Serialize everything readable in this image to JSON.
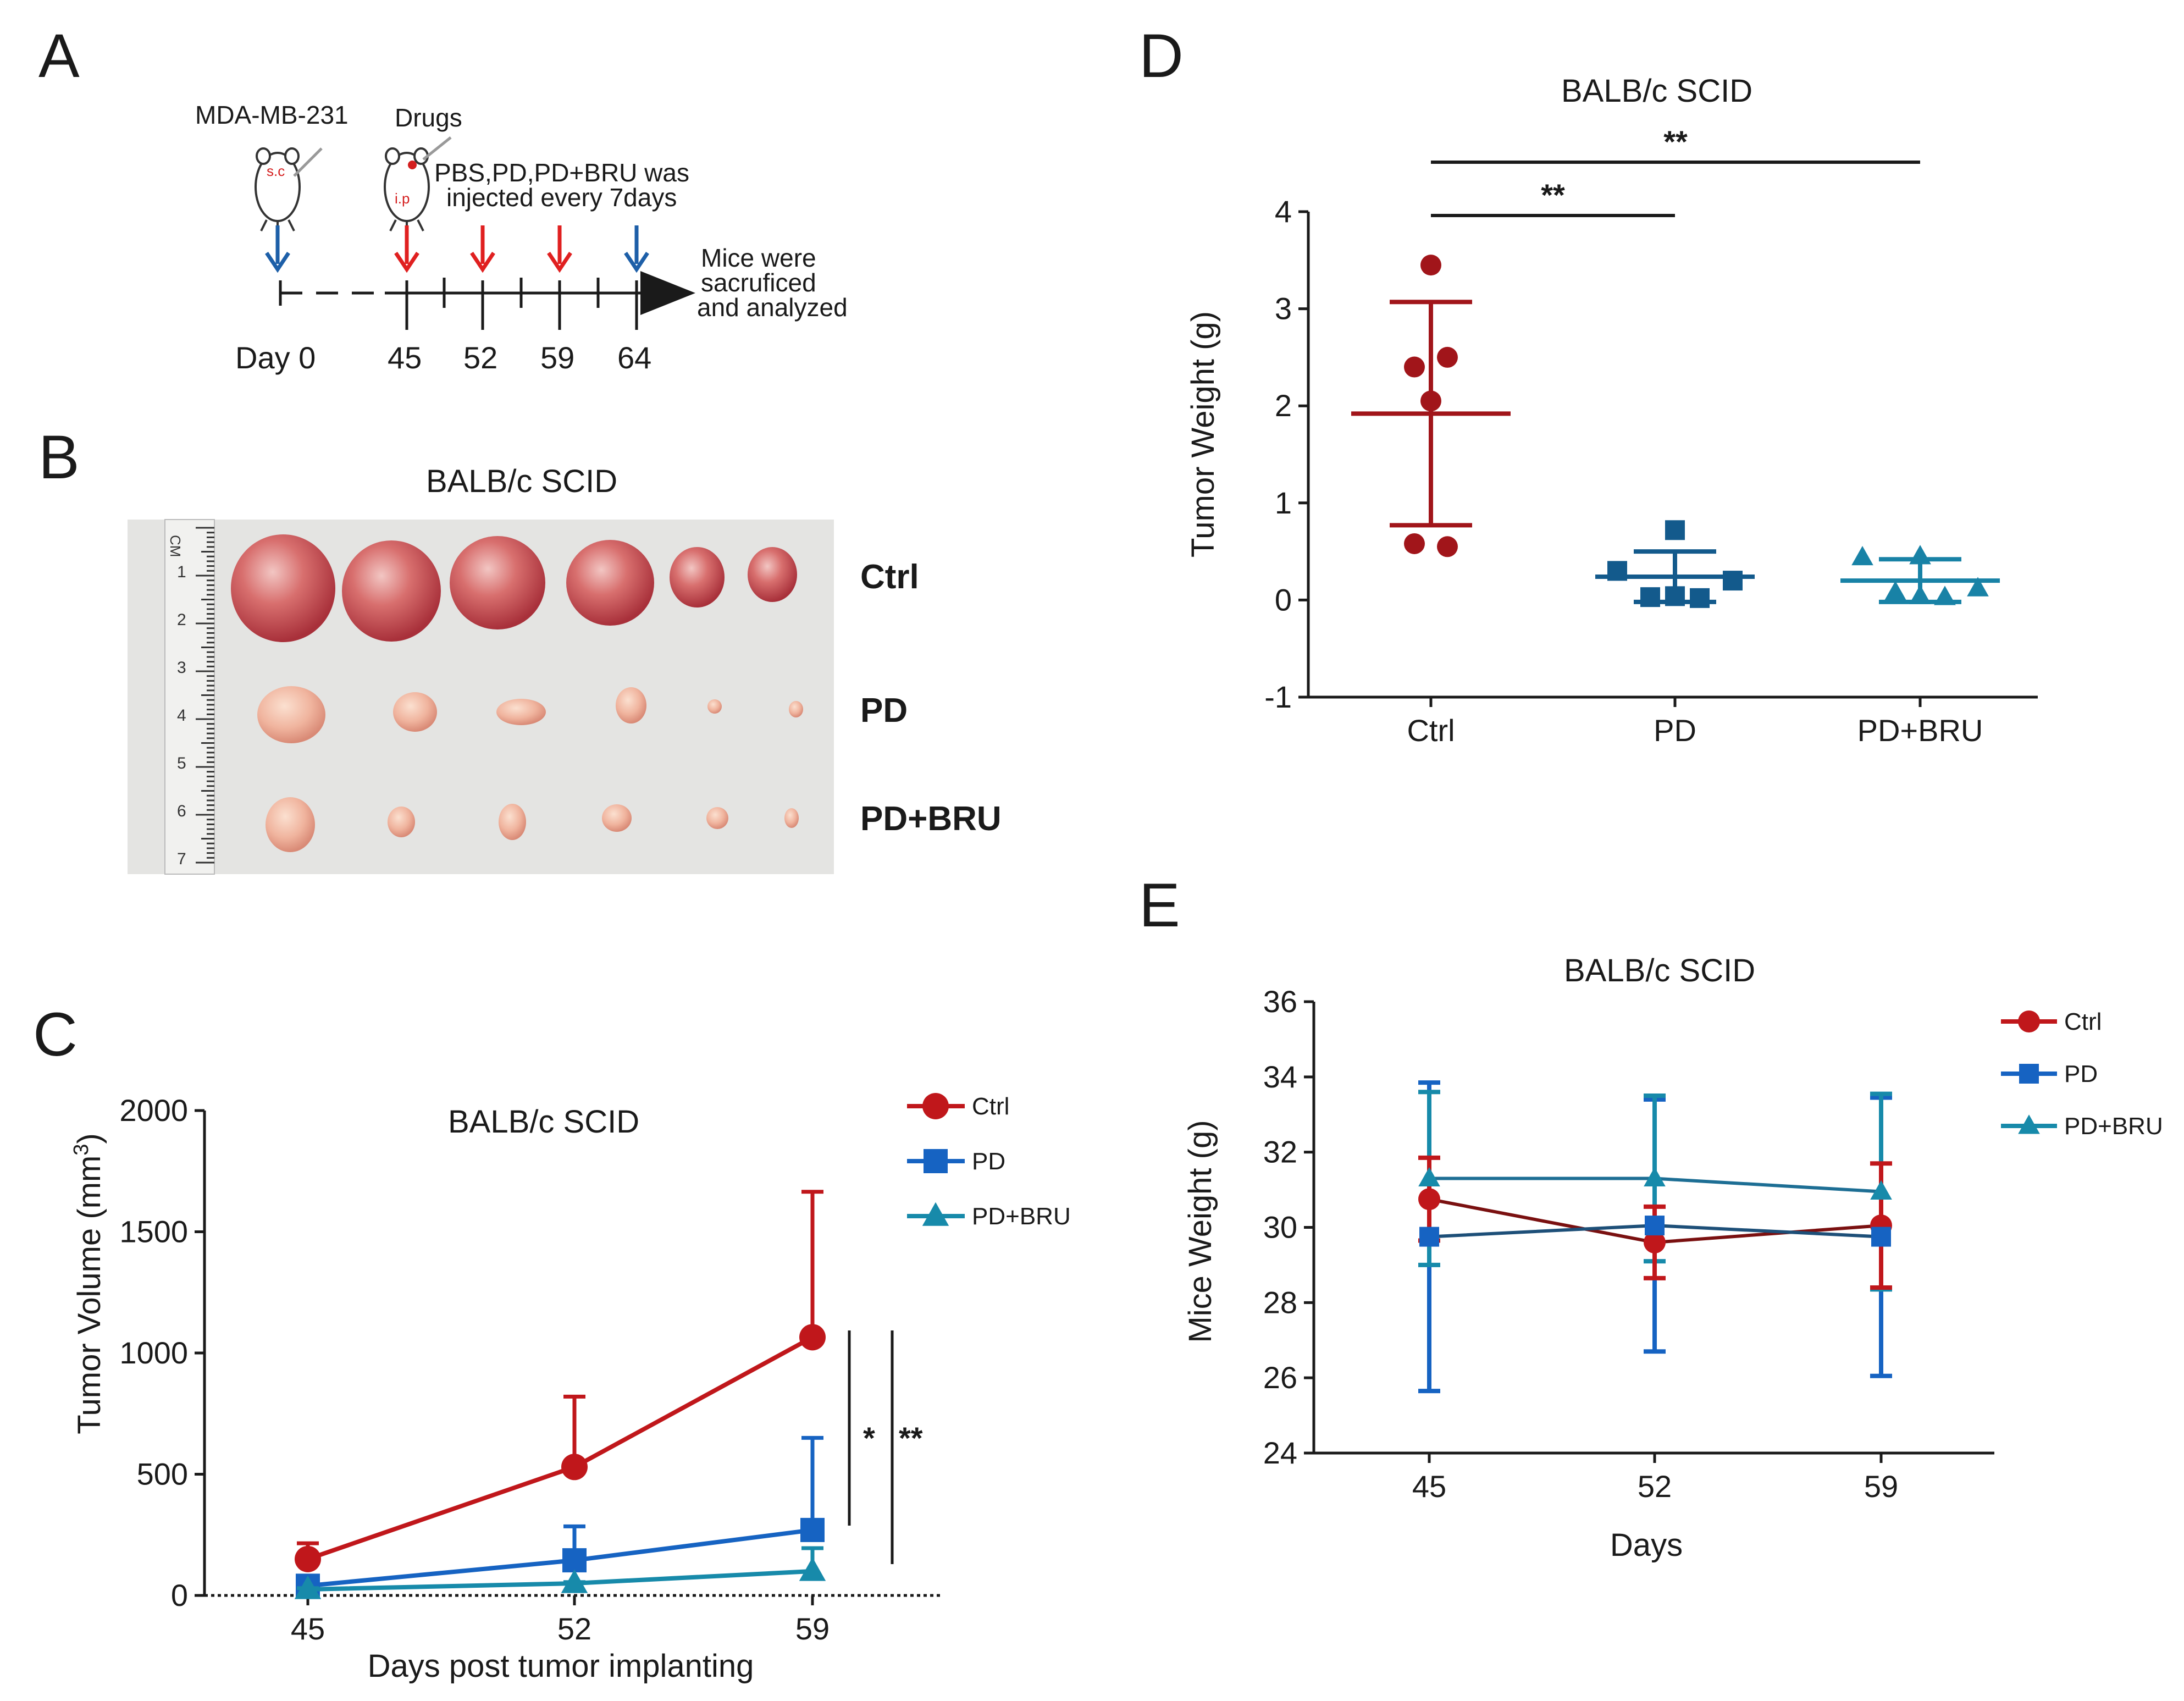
{
  "panels": {
    "A": {
      "letter": "A",
      "cell_line": "MDA-MB-231",
      "drugs": "Drugs",
      "sc": "s.c",
      "ip": "i.p",
      "injection_text": [
        "PBS,PD,PD+BRU was",
        "injected every 7days"
      ],
      "end_text": [
        "Mice were",
        "sacruficed",
        "and analyzed"
      ],
      "day_prefix": "Day 0",
      "days": [
        "45",
        "52",
        "59",
        "64"
      ]
    },
    "B": {
      "letter": "B",
      "title": "BALB/c SCID",
      "row_labels": [
        "Ctrl",
        "PD",
        "PD+BRU"
      ],
      "ruler_unit": "CM",
      "ruler_numbers": [
        "1",
        "2",
        "3",
        "4",
        "5",
        "6",
        "7"
      ]
    }
  },
  "chart_data": [
    {
      "panel": "C",
      "type": "line",
      "title": "BALB/c SCID",
      "xlabel": "Days post tumor implanting",
      "ylabel": "Tumor Volume (mm",
      "ylabel_sup": "3",
      "ylabel_close": ")",
      "categories": [
        "45",
        "52",
        "59"
      ],
      "ylim": [
        0,
        2000
      ],
      "yticks": [
        "0",
        "500",
        "1000",
        "1500",
        "2000"
      ],
      "series": [
        {
          "name": "Ctrl",
          "color": "#c0171b",
          "marker": "circle",
          "values": [
            150,
            530,
            1065
          ],
          "err_up": [
            65,
            290,
            600
          ]
        },
        {
          "name": "PD",
          "color": "#1663c2",
          "marker": "square",
          "values": [
            40,
            145,
            270
          ],
          "err_up": [
            15,
            140,
            380
          ]
        },
        {
          "name": "PD+BRU",
          "color": "#178aaa",
          "marker": "triangle",
          "values": [
            25,
            50,
            100
          ],
          "err_up": [
            5,
            5,
            95
          ]
        }
      ],
      "significance": [
        "*",
        "**"
      ],
      "legend_position": "top-right"
    },
    {
      "panel": "D",
      "type": "scatter",
      "title": "BALB/c SCID",
      "ylabel": "Tumor Weight (g)",
      "categories": [
        "Ctrl",
        "PD",
        "PD+BRU"
      ],
      "ylim": [
        -1,
        4
      ],
      "yticks": [
        "-1",
        "0",
        "1",
        "2",
        "3",
        "4"
      ],
      "groups": [
        {
          "name": "Ctrl",
          "color": "#a1151a",
          "marker": "circle",
          "mean": 1.92,
          "sd": 1.15,
          "points": [
            3.45,
            2.5,
            2.4,
            2.05,
            0.58,
            0.55
          ]
        },
        {
          "name": "PD",
          "color": "#135a8c",
          "marker": "square",
          "mean": 0.24,
          "sd": 0.26,
          "points": [
            0.72,
            0.3,
            0.2,
            0.03,
            0.02,
            0.04
          ]
        },
        {
          "name": "PD+BRU",
          "color": "#1882a6",
          "marker": "triangle",
          "mean": 0.2,
          "sd": 0.22,
          "points": [
            0.45,
            0.44,
            0.12,
            0.08,
            0.03,
            0.04
          ]
        }
      ],
      "significance": [
        {
          "from": "Ctrl",
          "to": "PD",
          "label": "**"
        },
        {
          "from": "Ctrl",
          "to": "PD+BRU",
          "label": "**"
        }
      ]
    },
    {
      "panel": "E",
      "type": "line",
      "title": "BALB/c SCID",
      "xlabel": "Days",
      "ylabel": "Mice Weight (g)",
      "categories": [
        "45",
        "52",
        "59"
      ],
      "ylim": [
        24,
        36
      ],
      "yticks": [
        "24",
        "26",
        "28",
        "30",
        "32",
        "34",
        "36"
      ],
      "series": [
        {
          "name": "Ctrl",
          "color": "#c0171b",
          "line_color": "#7a1010",
          "marker": "circle",
          "values": [
            30.75,
            29.6,
            30.05
          ],
          "err": [
            1.1,
            0.95,
            1.65
          ]
        },
        {
          "name": "PD",
          "color": "#1663c2",
          "line_color": "#1d4f78",
          "marker": "square",
          "values": [
            29.75,
            30.05,
            29.75
          ],
          "err": [
            4.1,
            3.35,
            3.7
          ]
        },
        {
          "name": "PD+BRU",
          "color": "#178aaa",
          "line_color": "#1d6e94",
          "marker": "triangle",
          "values": [
            31.3,
            31.3,
            30.95
          ],
          "err": [
            2.3,
            2.2,
            2.6
          ]
        }
      ],
      "legend_position": "top-right"
    }
  ],
  "colors": {
    "red_arrow": "#e02020",
    "blue_arrow": "#1d5fa8"
  }
}
